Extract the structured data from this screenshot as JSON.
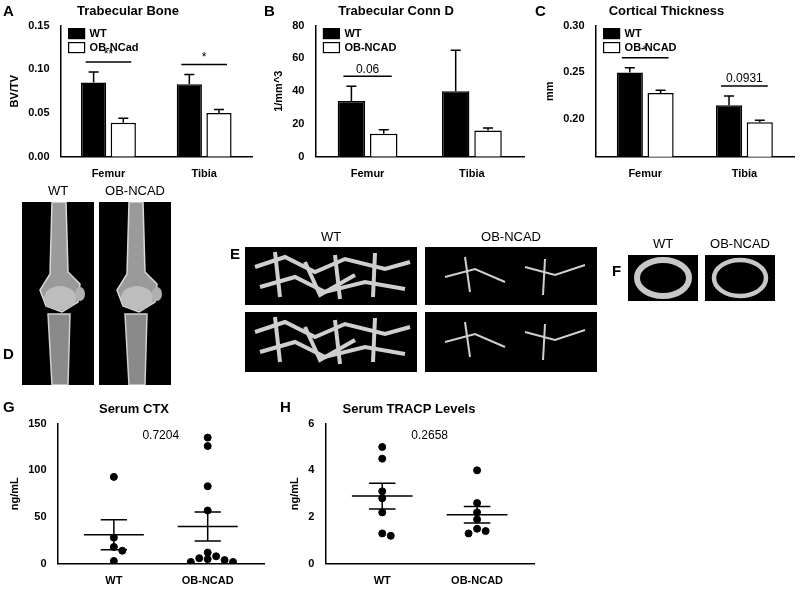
{
  "chart_data": [
    {
      "panel": "A",
      "type": "bar",
      "title": "Trabecular Bone",
      "ylabel": "BV/TV",
      "categories": [
        "Femur",
        "Tibia"
      ],
      "series": [
        {
          "name": "WT",
          "color": "#000000",
          "values": [
            0.085,
            0.083
          ],
          "errors": [
            0.012,
            0.011
          ]
        },
        {
          "name": "OB-NCad",
          "color": "#ffffff",
          "values": [
            0.039,
            0.05
          ],
          "errors": [
            0.005,
            0.004
          ]
        }
      ],
      "ylim": [
        0,
        0.15
      ],
      "yticks": [
        {
          "value": 0,
          "label": "0.00"
        },
        {
          "value": 0.05,
          "label": "0.05"
        },
        {
          "value": 0.1,
          "label": "0.10"
        },
        {
          "value": 0.15,
          "label": "0.15"
        }
      ],
      "annotations": [
        {
          "category": "Femur",
          "text": "**"
        },
        {
          "category": "Tibia",
          "text": "*"
        }
      ],
      "legend": "upper left",
      "grid": false
    },
    {
      "panel": "B",
      "type": "bar",
      "title": "Trabecular Conn D",
      "ylabel": "1/mm^3",
      "categories": [
        "Femur",
        "Tibia"
      ],
      "series": [
        {
          "name": "WT",
          "color": "#000000",
          "values": [
            34,
            40
          ],
          "errors": [
            9,
            25
          ]
        },
        {
          "name": "OB-NCAD",
          "color": "#ffffff",
          "values": [
            14,
            16
          ],
          "errors": [
            2.5,
            1.5
          ]
        }
      ],
      "ylim": [
        0,
        80
      ],
      "yticks": [
        0,
        20,
        40,
        60,
        80
      ],
      "annotations": [
        {
          "category": "Femur",
          "text": "0.06"
        }
      ],
      "legend": "upper left",
      "grid": false
    },
    {
      "panel": "C",
      "type": "bar",
      "title": "Cortical Thickness",
      "ylabel": "mm",
      "categories": [
        "Femur",
        "Tibia"
      ],
      "series": [
        {
          "name": "WT",
          "color": "#000000",
          "values": [
            0.25,
            0.215
          ],
          "errors": [
            0.005,
            0.01
          ]
        },
        {
          "name": "OB-NCAD",
          "color": "#ffffff",
          "values": [
            0.228,
            0.197
          ],
          "errors": [
            0.003,
            0.002
          ]
        }
      ],
      "ylim": [
        0.16,
        0.3
      ],
      "yticks": [
        {
          "value": 0.2,
          "label": "0.20"
        },
        {
          "value": 0.25,
          "label": "0.25"
        },
        {
          "value": 0.3,
          "label": "0.30"
        }
      ],
      "annotations": [
        {
          "category": "Femur",
          "text": "*"
        },
        {
          "category": "Tibia",
          "text": "0.0931"
        }
      ],
      "legend": "upper left",
      "grid": false
    },
    {
      "panel": "G",
      "type": "scatter",
      "title": "Serum CTX",
      "ylabel": "ng/mL",
      "categories": [
        "WT",
        "OB-NCAD"
      ],
      "groups": [
        {
          "values": [
            93,
            28,
            18,
            14,
            3
          ],
          "mean": 31,
          "sem": 16
        },
        {
          "values": [
            135,
            126,
            83,
            57,
            12,
            8,
            6,
            5,
            4,
            2,
            2
          ],
          "mean": 40,
          "sem": 15.5
        }
      ],
      "color": "#000000",
      "marker": "circle",
      "ylim": [
        0,
        150
      ],
      "yticks": [
        0,
        50,
        100,
        150
      ],
      "annotations": [
        {
          "text": "0.7204"
        }
      ],
      "grid": false
    },
    {
      "panel": "H",
      "type": "scatter",
      "title": "Serum TRACP Levels",
      "ylabel": "ng/mL",
      "categories": [
        "WT",
        "OB-NCAD"
      ],
      "groups": [
        {
          "values": [
            5.0,
            4.5,
            3.1,
            2.8,
            2.2,
            1.3,
            1.2
          ],
          "mean": 2.9,
          "sem": 0.55
        },
        {
          "values": [
            4.0,
            2.6,
            2.2,
            1.9,
            1.5,
            1.4,
            1.3
          ],
          "mean": 2.1,
          "sem": 0.35
        }
      ],
      "color": "#000000",
      "marker": "circle",
      "ylim": [
        0,
        6
      ],
      "yticks": [
        0,
        2,
        4,
        6
      ],
      "annotations": [
        {
          "text": "0.2658"
        }
      ],
      "grid": false
    }
  ],
  "images": [
    {
      "panel": "D",
      "labels": [
        "WT",
        "OB-NCAD"
      ]
    },
    {
      "panel": "E",
      "labels": [
        "WT",
        "OB-NCAD"
      ]
    },
    {
      "panel": "F",
      "labels": [
        "WT",
        "OB-NCAD"
      ]
    }
  ]
}
